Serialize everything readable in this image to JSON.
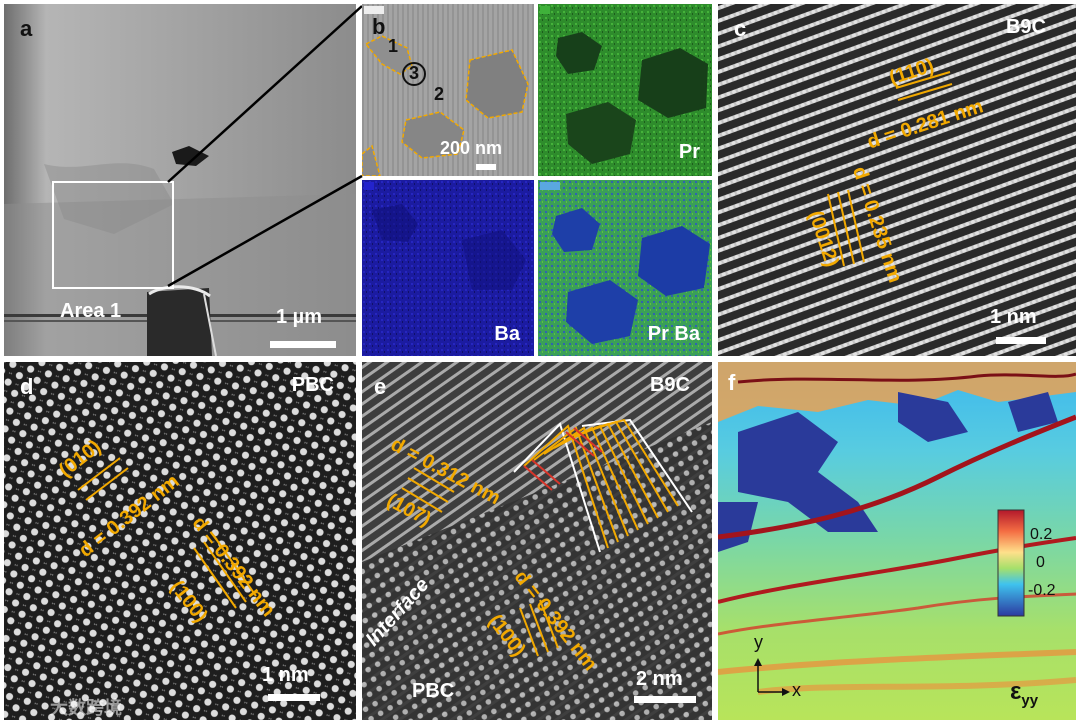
{
  "panels": {
    "a": {
      "letter": "a",
      "area_label": "Area 1",
      "scale_bar": "1 µm"
    },
    "b": {
      "letter": "b",
      "region_labels": [
        "1",
        "2",
        "3"
      ],
      "scale_bar": "200 nm"
    },
    "b_pr": {
      "label": "Pr"
    },
    "b_ba": {
      "label": "Ba"
    },
    "b_prba": {
      "label": "Pr Ba"
    },
    "c": {
      "letter": "c",
      "title": "B9C",
      "plane1": "(110)",
      "d1": "d = 0.281 nm",
      "plane2": "(0012)",
      "d2": "d = 0.235 nm",
      "scale_bar": "1 nm"
    },
    "d": {
      "letter": "d",
      "title": "PBC",
      "plane1": "(010)",
      "d1": "d = 0.392 nm",
      "plane2": "(100)",
      "d2": "d = 0.392 nm",
      "scale_bar": "1 nm"
    },
    "e": {
      "letter": "e",
      "title": "B9C",
      "plane1": "(107)",
      "d1": "d = 0.312 nm",
      "plane2": "(100)",
      "d2": "d = 0.392 nm",
      "interface": "Interface",
      "bottom_label": "PBC",
      "scale_bar": "2 nm"
    },
    "f": {
      "letter": "f",
      "colorbar_ticks": [
        "0.2",
        "0",
        "-0.2"
      ],
      "axis_y": "y",
      "axis_x": "x",
      "strain_symbol": "ε",
      "strain_sub": "yy"
    }
  },
  "watermark": "大数跨境",
  "colors": {
    "annotation": "#f2a900",
    "red_marks": "#d8352a"
  }
}
